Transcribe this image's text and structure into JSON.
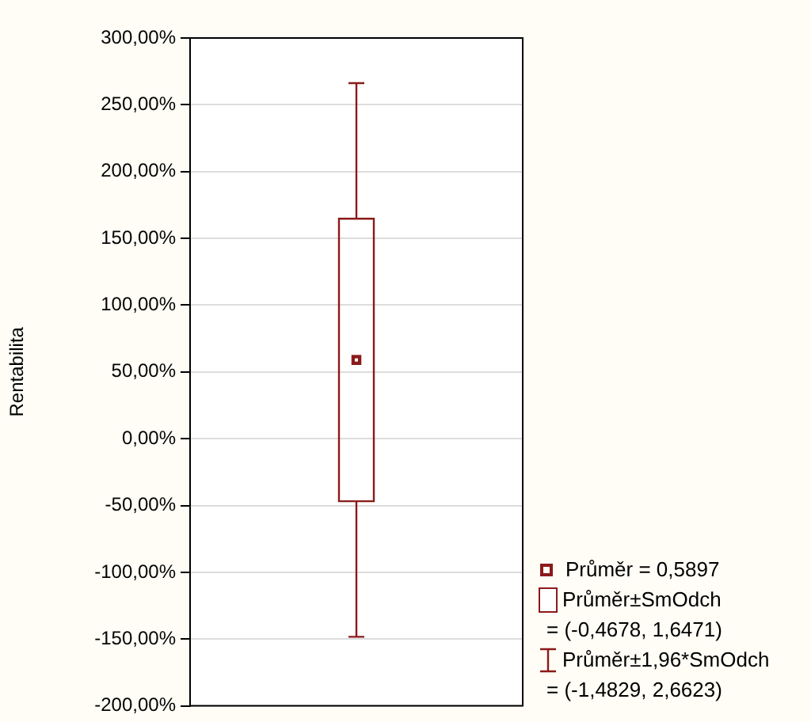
{
  "chart_data": {
    "type": "box",
    "ylabel": "Rentabilita",
    "categories": [
      null
    ],
    "series": [
      {
        "color": "#8b1a1a",
        "boxes": [
          {
            "low": -148.29,
            "q1": -46.78,
            "median": 58.97,
            "q3": 164.71,
            "high": 266.23
          }
        ]
      }
    ],
    "ylim": [
      -200,
      300
    ],
    "yticks": [
      {
        "value": -200,
        "label": "-200,00%"
      },
      {
        "value": -150,
        "label": "-150,00%"
      },
      {
        "value": -100,
        "label": "-100,00%"
      },
      {
        "value": -50,
        "label": "-50,00%"
      },
      {
        "value": 0,
        "label": "0,00%"
      },
      {
        "value": 50,
        "label": "50,00%"
      },
      {
        "value": 100,
        "label": "100,00%"
      },
      {
        "value": 150,
        "label": "150,00%"
      },
      {
        "value": 200,
        "label": "200,00%"
      },
      {
        "value": 250,
        "label": "250,00%"
      },
      {
        "value": 300,
        "label": "300,00%"
      }
    ],
    "grid": "y",
    "tick_labels": "y",
    "annotations": [
      "Průměr = 0,5897",
      "Průměr±SmOdch",
      "= (-0,4678, 1,6471)",
      "Průměr±1,96*SmOdch",
      "= (-1,4829, 2,6623)"
    ]
  }
}
